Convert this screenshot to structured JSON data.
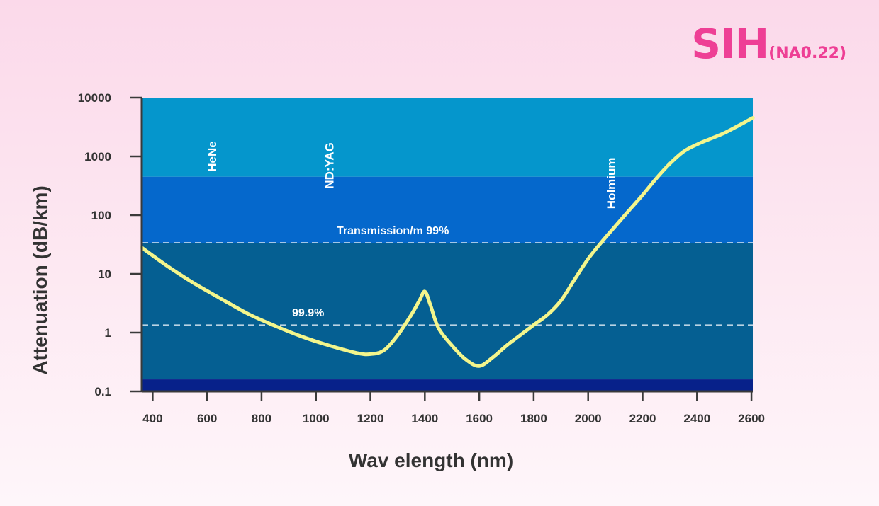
{
  "brand": {
    "name": "SIH",
    "subtitle": "(NA0.22)"
  },
  "colors": {
    "band_top": "#0596cc",
    "band_mid": "#0568cc",
    "band_low": "#055f92",
    "band_floor": "#07218a",
    "curve": "#f3f58c",
    "accent": "#ee3f95"
  },
  "chart_data": {
    "type": "line",
    "title": "SIH(NA0.22)",
    "xlabel": "Wav elength (nm)",
    "ylabel": "Attenuation (dB/km)",
    "xlim": [
      360,
      2605
    ],
    "ylim": [
      0.1,
      10000
    ],
    "y_scale": "log",
    "x_ticks": [
      400,
      600,
      800,
      1000,
      1200,
      1400,
      1600,
      1800,
      2000,
      2200,
      2400,
      2600
    ],
    "y_ticks": [
      {
        "value": 0.1,
        "label": "0.1"
      },
      {
        "value": 1,
        "label": "1"
      },
      {
        "value": 10,
        "label": "10"
      },
      {
        "value": 100,
        "label": "100"
      },
      {
        "value": 1000,
        "label": "1000"
      },
      {
        "value": 10000,
        "label": "10000"
      }
    ],
    "bands": [
      {
        "from": 450,
        "to": 10000,
        "color": "#0596cc"
      },
      {
        "from": 33,
        "to": 450,
        "color": "#0568cc"
      },
      {
        "from": 0.16,
        "to": 33,
        "color": "#055f92"
      },
      {
        "from": 0.1,
        "to": 0.16,
        "color": "#07218a"
      }
    ],
    "wavelength_labels": [
      {
        "text": "HeNe",
        "x": 633,
        "y": 1000
      },
      {
        "text": "ND:YAG",
        "x": 1064,
        "y": 700
      },
      {
        "text": "Holmium",
        "x": 2100,
        "y": 350
      }
    ],
    "reference_lines": [
      {
        "label": "Transmission/m 99%",
        "value": 34
      },
      {
        "label": "99.9%",
        "value": 1.35
      }
    ],
    "series": [
      {
        "color": "#f3f58c",
        "x": [
          360,
          450,
          550,
          650,
          750,
          850,
          950,
          1050,
          1150,
          1200,
          1250,
          1300,
          1350,
          1380,
          1400,
          1420,
          1450,
          1500,
          1550,
          1600,
          1650,
          1700,
          1750,
          1800,
          1850,
          1900,
          1950,
          2000,
          2050,
          2100,
          2150,
          2200,
          2250,
          2300,
          2350,
          2400,
          2450,
          2500,
          2550,
          2600,
          2605
        ],
        "y": [
          28,
          14,
          7,
          3.8,
          2.1,
          1.3,
          0.85,
          0.6,
          0.45,
          0.43,
          0.5,
          0.9,
          2,
          3.5,
          5,
          3,
          1.2,
          0.6,
          0.35,
          0.27,
          0.38,
          0.6,
          0.9,
          1.35,
          2,
          3.5,
          8,
          18,
          35,
          65,
          120,
          220,
          420,
          750,
          1200,
          1600,
          2000,
          2500,
          3300,
          4400,
          4500
        ]
      }
    ]
  }
}
